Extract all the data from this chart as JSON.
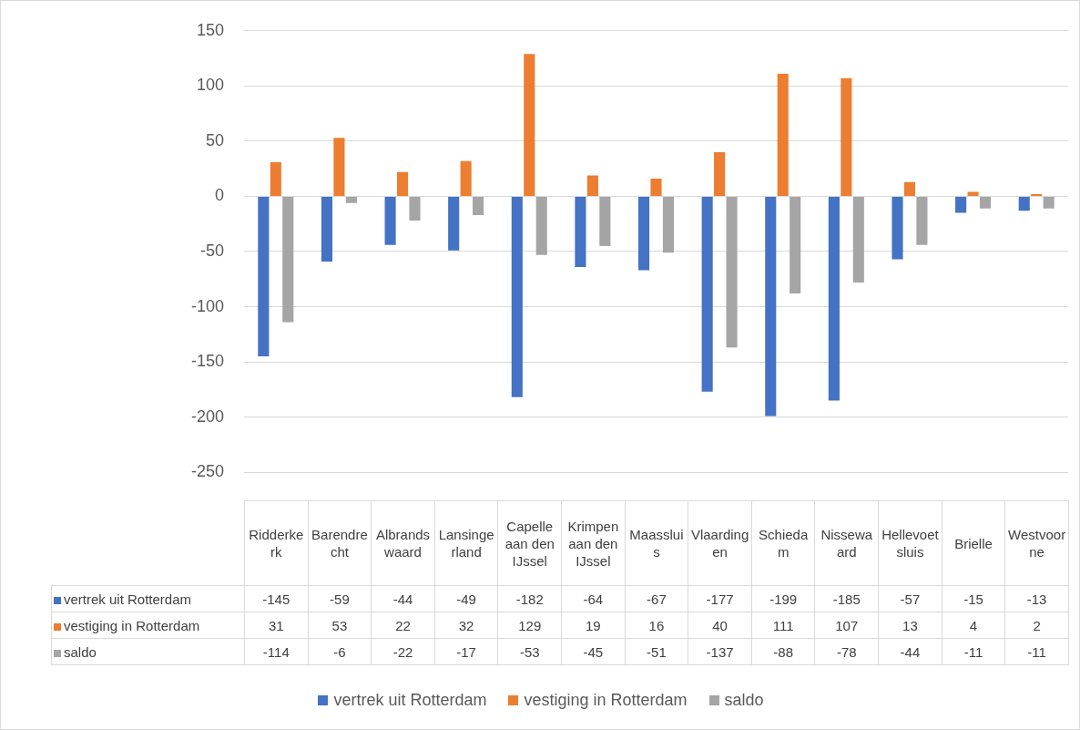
{
  "chart_data": {
    "type": "bar",
    "categories": [
      "Ridderkerk",
      "Barendrecht",
      "Albrandswaard",
      "Lansingerland",
      "Capelle aan den IJssel",
      "Krimpen aan den IJssel",
      "Maassluis",
      "Vlaardingen",
      "Schiedam",
      "Nissewaard",
      "Hellevoetsluis",
      "Brielle",
      "Westvoorne"
    ],
    "series": [
      {
        "name": "vertrek uit Rotterdam",
        "color": "#4472c4",
        "values": [
          -145,
          -59,
          -44,
          -49,
          -182,
          -64,
          -67,
          -177,
          -199,
          -185,
          -57,
          -15,
          -13
        ]
      },
      {
        "name": "vestiging in Rotterdam",
        "color": "#ed7d31",
        "values": [
          31,
          53,
          22,
          32,
          129,
          19,
          16,
          40,
          111,
          107,
          13,
          4,
          2
        ]
      },
      {
        "name": "saldo",
        "color": "#a5a5a5",
        "values": [
          -114,
          -6,
          -22,
          -17,
          -53,
          -45,
          -51,
          -137,
          -88,
          -78,
          -44,
          -11,
          -11
        ]
      }
    ],
    "ylim": [
      -250,
      150
    ],
    "yticks": [
      -250,
      -200,
      -150,
      -100,
      -50,
      0,
      50,
      100,
      150
    ],
    "grid": "y",
    "legend": "bottom",
    "data_labels": true
  }
}
